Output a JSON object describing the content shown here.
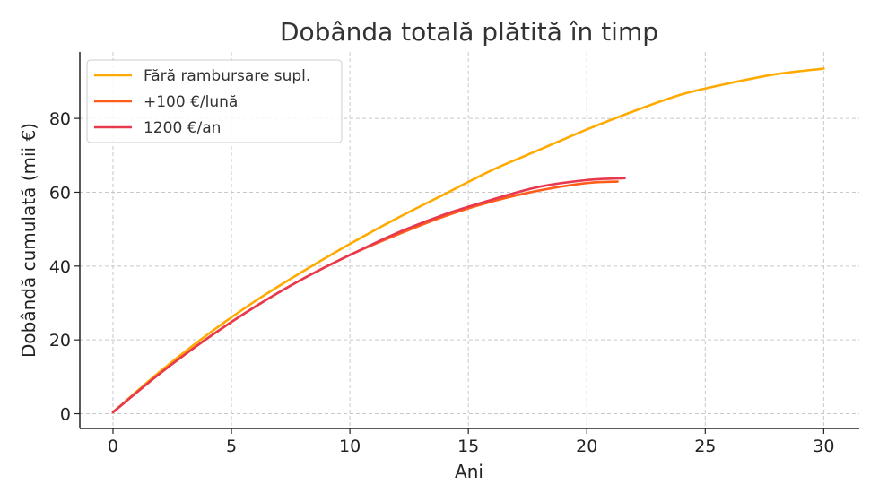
{
  "chart_data": {
    "type": "line",
    "title": "Dobânda totală plătită în timp",
    "xlabel": "Ani",
    "ylabel": "Dobândă cumulată (mii €)",
    "xlim": [
      -1.4,
      31.5
    ],
    "ylim": [
      -4,
      98
    ],
    "xticks": [
      0,
      5,
      10,
      15,
      20,
      25,
      30
    ],
    "yticks": [
      0,
      20,
      40,
      60,
      80
    ],
    "grid": true,
    "legend_position": "top-left",
    "series": [
      {
        "name": "Fără rambursare supl.",
        "color": "#ffaa00",
        "x": [
          0,
          2,
          4,
          6,
          8,
          10,
          12,
          14,
          16,
          18,
          20,
          22,
          24,
          26,
          28,
          30
        ],
        "y": [
          0.4,
          11.5,
          21.5,
          30.5,
          38.5,
          46,
          53,
          59.5,
          66,
          71.5,
          77,
          82,
          86.5,
          89.5,
          92,
          93.5
        ]
      },
      {
        "name": "+100 €/lună",
        "color": "#ff5e1a",
        "x": [
          0,
          2,
          4,
          6,
          8,
          10,
          12,
          14,
          16,
          18,
          20,
          21.3
        ],
        "y": [
          0.4,
          11,
          20.5,
          29,
          36.5,
          43,
          48.5,
          53.5,
          57.5,
          60.5,
          62.5,
          62.9
        ]
      },
      {
        "name": "1200 €/an",
        "color": "#e8384f",
        "x": [
          0,
          2,
          4,
          6,
          8,
          10,
          12,
          14,
          16,
          18,
          20,
          21.6
        ],
        "y": [
          0.4,
          11,
          20.5,
          29,
          36.5,
          43,
          49,
          54,
          58,
          61.5,
          63.3,
          63.8
        ]
      }
    ]
  }
}
